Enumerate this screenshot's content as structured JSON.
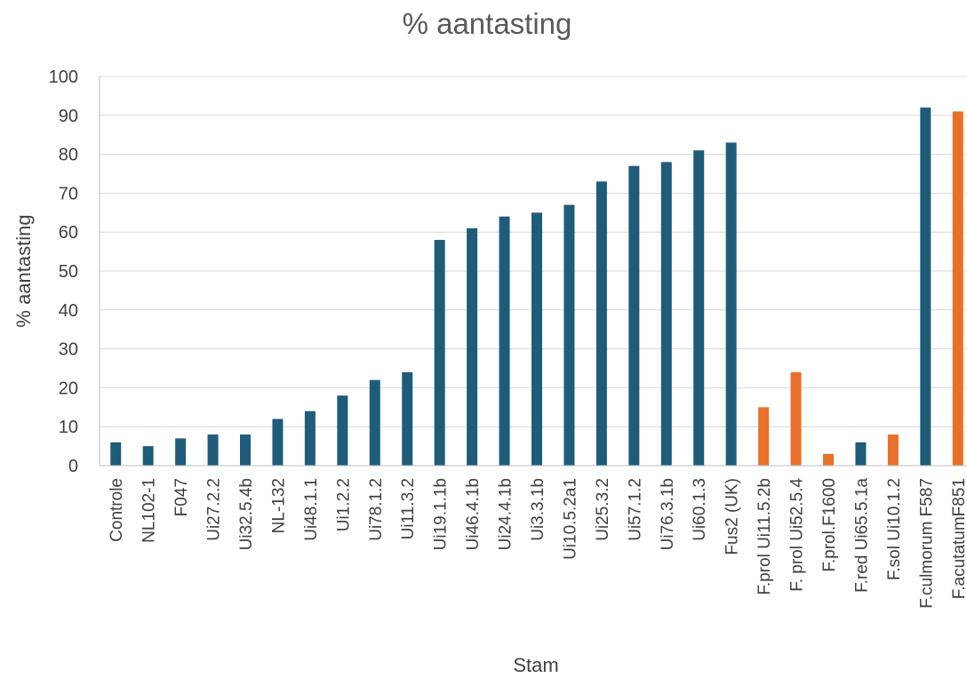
{
  "chart_data": {
    "type": "bar",
    "title": "% aantasting",
    "xlabel": "Stam",
    "ylabel": "% aantasting",
    "ylim": [
      0,
      100
    ],
    "yticks": [
      0,
      10,
      20,
      30,
      40,
      50,
      60,
      70,
      80,
      90,
      100
    ],
    "grid": true,
    "legend": "none",
    "categories": [
      "Controle",
      "NL102-1",
      "F047",
      "Ui27.2.2",
      "Ui32.5.4b",
      "NL-132",
      "Ui48.1.1",
      "Ui1.2.2",
      "Ui78.1.2",
      "Ui11.3.2",
      "Ui19.1.1b",
      "Ui46.4.1b",
      "Ui24.4.1b",
      "Ui3.3.1b",
      "Ui10.5.2a1",
      "Ui25.3.2",
      "Ui57.1.2",
      "Ui76.3.1b",
      "Ui60.1.3",
      "Fus2 (UK)",
      "F.prol Ui11.5.2b",
      "F. prol Ui52.5.4",
      "F.prol.F1600",
      "F.red Ui65.5.1a",
      "F.sol Ui10.1.2",
      "F.culmorum F587",
      "F.acutatumF851"
    ],
    "values": [
      6,
      5,
      7,
      8,
      8,
      12,
      14,
      18,
      22,
      24,
      58,
      61,
      64,
      65,
      67,
      73,
      77,
      78,
      81,
      83,
      15,
      24,
      3,
      6,
      8,
      92,
      91
    ],
    "colors": [
      "#1F5C7A",
      "#1F5C7A",
      "#1F5C7A",
      "#1F5C7A",
      "#1F5C7A",
      "#1F5C7A",
      "#1F5C7A",
      "#1F5C7A",
      "#1F5C7A",
      "#1F5C7A",
      "#1F5C7A",
      "#1F5C7A",
      "#1F5C7A",
      "#1F5C7A",
      "#1F5C7A",
      "#1F5C7A",
      "#1F5C7A",
      "#1F5C7A",
      "#1F5C7A",
      "#1F5C7A",
      "#E8702A",
      "#E8702A",
      "#E8702A",
      "#1F5C7A",
      "#E8702A",
      "#1F5C7A",
      "#E8702A"
    ]
  }
}
